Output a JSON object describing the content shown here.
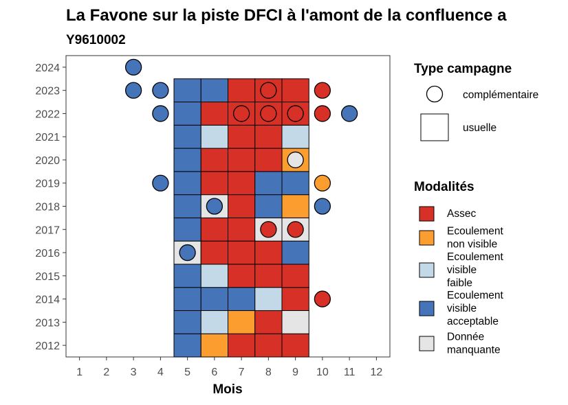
{
  "chart_data": {
    "type": "heatmap",
    "title": "La Favone sur la piste DFCI à l'amont de la confluence a",
    "subtitle": "Y9610002",
    "xlabel": "Mois",
    "ylabel": "",
    "x_ticks": [
      "1",
      "2",
      "3",
      "4",
      "5",
      "6",
      "7",
      "8",
      "9",
      "10",
      "11",
      "12"
    ],
    "y_ticks": [
      "2012",
      "2013",
      "2014",
      "2015",
      "2016",
      "2017",
      "2018",
      "2019",
      "2020",
      "2021",
      "2022",
      "2023",
      "2024"
    ],
    "xlim": [
      0.5,
      12.5
    ],
    "ylim": [
      2011.5,
      2024.5
    ],
    "grid": false,
    "legend": {
      "campagne": {
        "title": "Type campagne",
        "entries": [
          {
            "key": "complementaire",
            "label": "complémentaire",
            "shape": "circle"
          },
          {
            "key": "usuelle",
            "label": "usuelle",
            "shape": "square"
          }
        ]
      },
      "modalites": {
        "title": "Modalités",
        "entries": [
          {
            "key": "assec",
            "label": "Assec",
            "lines": [
              "Assec"
            ],
            "color": "#d73027"
          },
          {
            "key": "nonvisible",
            "label": "Ecoulement non visible",
            "lines": [
              "Ecoulement",
              "non visible"
            ],
            "color": "#fc9d2f"
          },
          {
            "key": "faible",
            "label": "Ecoulement visible faible",
            "lines": [
              "Ecoulement",
              "visible",
              "faible"
            ],
            "color": "#c3d9e8"
          },
          {
            "key": "acceptable",
            "label": "Ecoulement visible acceptable",
            "lines": [
              "Ecoulement",
              "visible",
              "acceptable"
            ],
            "color": "#4674b8"
          },
          {
            "key": "manquante",
            "label": "Donnée manquante",
            "lines": [
              "Donnée",
              "manquante"
            ],
            "color": "#e5e5e5"
          }
        ]
      }
    },
    "usuelle": {
      "months": [
        5,
        6,
        7,
        8,
        9
      ],
      "rows": [
        {
          "year": 2012,
          "values": [
            "acceptable",
            "nonvisible",
            "assec",
            "assec",
            "assec"
          ]
        },
        {
          "year": 2013,
          "values": [
            "acceptable",
            "faible",
            "nonvisible",
            "assec",
            "manquante"
          ]
        },
        {
          "year": 2014,
          "values": [
            "acceptable",
            "acceptable",
            "acceptable",
            "faible",
            "assec"
          ]
        },
        {
          "year": 2015,
          "values": [
            "acceptable",
            "faible",
            "assec",
            "assec",
            "assec"
          ]
        },
        {
          "year": 2016,
          "values": [
            "manquante",
            "assec",
            "assec",
            "assec",
            "acceptable"
          ]
        },
        {
          "year": 2017,
          "values": [
            "acceptable",
            "assec",
            "assec",
            "manquante",
            "manquante"
          ]
        },
        {
          "year": 2018,
          "values": [
            "acceptable",
            "manquante",
            "assec",
            "acceptable",
            "nonvisible"
          ]
        },
        {
          "year": 2019,
          "values": [
            "acceptable",
            "assec",
            "assec",
            "acceptable",
            "acceptable"
          ]
        },
        {
          "year": 2020,
          "values": [
            "acceptable",
            "assec",
            "assec",
            "assec",
            "nonvisible"
          ]
        },
        {
          "year": 2021,
          "values": [
            "acceptable",
            "faible",
            "assec",
            "assec",
            "faible"
          ]
        },
        {
          "year": 2022,
          "values": [
            "acceptable",
            "assec",
            "assec",
            "assec",
            "assec"
          ]
        },
        {
          "year": 2023,
          "values": [
            "acceptable",
            "acceptable",
            "assec",
            "assec",
            "assec"
          ]
        }
      ]
    },
    "complementaire": [
      {
        "year": 2024,
        "month": 3,
        "value": "acceptable"
      },
      {
        "year": 2023,
        "month": 3,
        "value": "acceptable"
      },
      {
        "year": 2023,
        "month": 4,
        "value": "acceptable"
      },
      {
        "year": 2023,
        "month": 8,
        "value": "assec"
      },
      {
        "year": 2023,
        "month": 10,
        "value": "assec"
      },
      {
        "year": 2022,
        "month": 4,
        "value": "acceptable"
      },
      {
        "year": 2022,
        "month": 7,
        "value": "assec"
      },
      {
        "year": 2022,
        "month": 8,
        "value": "assec"
      },
      {
        "year": 2022,
        "month": 9,
        "value": "assec"
      },
      {
        "year": 2022,
        "month": 10,
        "value": "assec"
      },
      {
        "year": 2022,
        "month": 11,
        "value": "acceptable"
      },
      {
        "year": 2020,
        "month": 9,
        "value": "manquante"
      },
      {
        "year": 2019,
        "month": 4,
        "value": "acceptable"
      },
      {
        "year": 2019,
        "month": 10,
        "value": "nonvisible"
      },
      {
        "year": 2018,
        "month": 6,
        "value": "acceptable"
      },
      {
        "year": 2018,
        "month": 10,
        "value": "acceptable"
      },
      {
        "year": 2017,
        "month": 8,
        "value": "assec"
      },
      {
        "year": 2017,
        "month": 9,
        "value": "assec"
      },
      {
        "year": 2016,
        "month": 5,
        "value": "acceptable"
      },
      {
        "year": 2014,
        "month": 10,
        "value": "assec"
      }
    ]
  }
}
